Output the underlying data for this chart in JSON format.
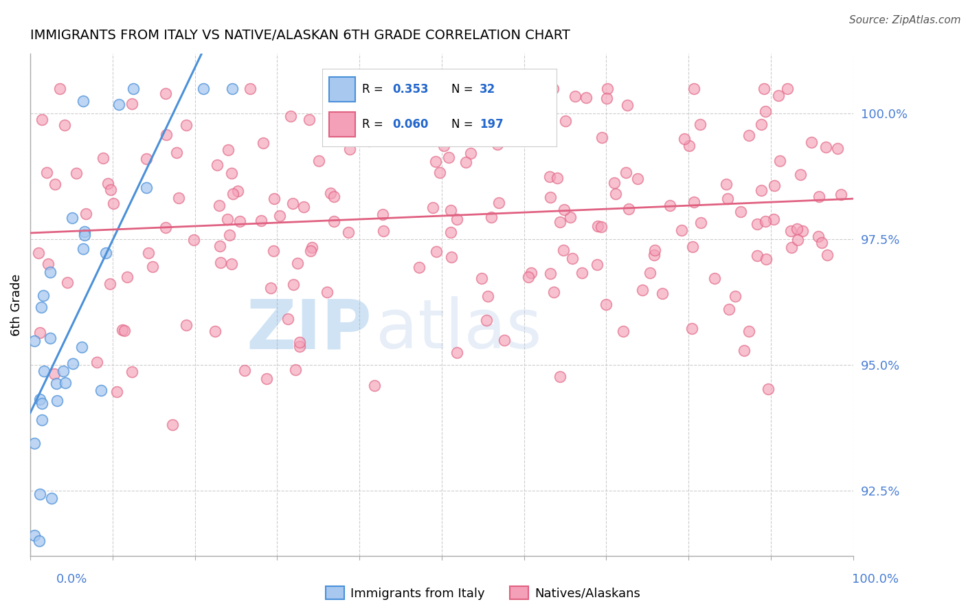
{
  "title": "IMMIGRANTS FROM ITALY VS NATIVE/ALASKAN 6TH GRADE CORRELATION CHART",
  "source": "Source: ZipAtlas.com",
  "ylabel": "6th Grade",
  "ylabel_right_ticks": [
    92.5,
    95.0,
    97.5,
    100.0
  ],
  "ylabel_right_labels": [
    "92.5%",
    "95.0%",
    "97.5%",
    "100.0%"
  ],
  "legend_italy": "Immigrants from Italy",
  "legend_natives": "Natives/Alaskans",
  "R_italy": 0.353,
  "N_italy": 32,
  "R_natives": 0.06,
  "N_natives": 197,
  "color_italy": "#a8c8f0",
  "color_natives": "#f4a0b8",
  "color_italy_line": "#4a90d9",
  "color_natives_line": "#e06080",
  "watermark_zip": "ZIP",
  "watermark_atlas": "atlas",
  "xmin": 0.0,
  "xmax": 1.0,
  "ymin": 91.2,
  "ymax": 101.2,
  "seed": 42
}
